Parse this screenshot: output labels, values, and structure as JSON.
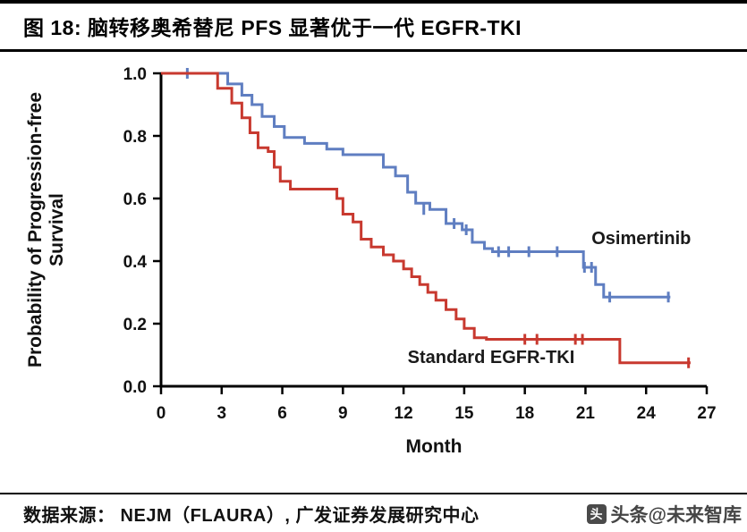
{
  "header": {
    "title": "图 18:  脑转移奥希替尼 PFS 显著优于一代 EGFR-TKI"
  },
  "footer": {
    "source": "数据来源：  NEJM（FLAURA）,  广发证券发展研究中心",
    "watermark": "头条@未来智库",
    "watermark_logo_char": "头"
  },
  "chart_data": {
    "type": "line",
    "subtype": "kaplan_meier_step",
    "title": "脑转移奥希替尼 PFS 显著优于一代 EGFR-TKI",
    "xlabel": "Month",
    "ylabel": "Probability of Progression-free Survival",
    "ylabel_lines": [
      "Probability of Progression-free",
      "Survival"
    ],
    "xlim": [
      0,
      27
    ],
    "ylim": [
      0,
      1
    ],
    "xticks": [
      0,
      3,
      6,
      9,
      12,
      15,
      18,
      21,
      24,
      27
    ],
    "yticks": [
      0.0,
      0.2,
      0.4,
      0.6,
      0.8,
      1.0
    ],
    "grid": false,
    "legend": "inline-annotations",
    "series": [
      {
        "name": "Osimertinib",
        "color": "#5f7ec1",
        "points": [
          [
            0,
            1.0
          ],
          [
            3.3,
            0.966
          ],
          [
            4.0,
            0.93
          ],
          [
            4.5,
            0.9
          ],
          [
            5.0,
            0.862
          ],
          [
            5.6,
            0.83
          ],
          [
            6.1,
            0.795
          ],
          [
            7.1,
            0.776
          ],
          [
            8.2,
            0.758
          ],
          [
            9.0,
            0.74
          ],
          [
            11.0,
            0.7
          ],
          [
            11.6,
            0.672
          ],
          [
            12.2,
            0.62
          ],
          [
            12.6,
            0.585
          ],
          [
            13.3,
            0.565
          ],
          [
            14.1,
            0.52
          ],
          [
            14.9,
            0.5
          ],
          [
            15.4,
            0.46
          ],
          [
            16.0,
            0.44
          ],
          [
            16.4,
            0.43
          ],
          [
            20.9,
            0.38
          ],
          [
            21.5,
            0.325
          ],
          [
            21.9,
            0.285
          ],
          [
            25.2,
            0.285
          ]
        ],
        "censors": [
          [
            1.3,
            1.0
          ],
          [
            13.0,
            0.565
          ],
          [
            14.5,
            0.52
          ],
          [
            15.1,
            0.5
          ],
          [
            16.7,
            0.43
          ],
          [
            17.2,
            0.43
          ],
          [
            18.2,
            0.43
          ],
          [
            19.6,
            0.43
          ],
          [
            20.95,
            0.38
          ],
          [
            21.3,
            0.38
          ],
          [
            22.2,
            0.285
          ],
          [
            25.1,
            0.285
          ]
        ]
      },
      {
        "name": "Standard EGFR-TKI",
        "color": "#c8392f",
        "points": [
          [
            0,
            1.0
          ],
          [
            2.8,
            0.952
          ],
          [
            3.5,
            0.905
          ],
          [
            4.0,
            0.858
          ],
          [
            4.4,
            0.81
          ],
          [
            4.8,
            0.762
          ],
          [
            5.3,
            0.75
          ],
          [
            5.6,
            0.7
          ],
          [
            5.9,
            0.655
          ],
          [
            6.4,
            0.63
          ],
          [
            8.7,
            0.6
          ],
          [
            9.0,
            0.55
          ],
          [
            9.5,
            0.525
          ],
          [
            9.9,
            0.47
          ],
          [
            10.4,
            0.445
          ],
          [
            11.0,
            0.42
          ],
          [
            11.5,
            0.4
          ],
          [
            12.0,
            0.375
          ],
          [
            12.4,
            0.35
          ],
          [
            12.8,
            0.325
          ],
          [
            13.2,
            0.3
          ],
          [
            13.6,
            0.275
          ],
          [
            14.1,
            0.245
          ],
          [
            14.6,
            0.215
          ],
          [
            15.0,
            0.185
          ],
          [
            15.5,
            0.155
          ],
          [
            16.1,
            0.15
          ],
          [
            22.7,
            0.075
          ],
          [
            26.2,
            0.075
          ]
        ],
        "censors": [
          [
            18.0,
            0.15
          ],
          [
            18.6,
            0.15
          ],
          [
            20.5,
            0.15
          ],
          [
            20.85,
            0.15
          ],
          [
            26.1,
            0.075
          ]
        ]
      }
    ],
    "annotations": [
      {
        "text": "Osimertinib",
        "x": 21.3,
        "y": 0.455
      },
      {
        "text": "Standard EGFR-TKI",
        "x": 12.2,
        "y": 0.075
      }
    ]
  }
}
